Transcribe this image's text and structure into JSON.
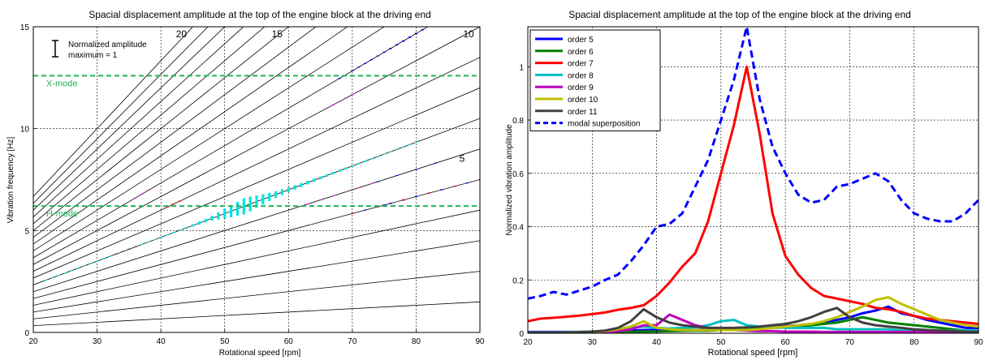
{
  "chart_data": [
    {
      "type": "line",
      "title": "Spacial displacement amplitude at the top of the engine block at the driving end",
      "xlabel": "Rotational speed [rpm]",
      "ylabel": "Vibration frequency [Hz]",
      "xlim": [
        20,
        90
      ],
      "ylim": [
        0,
        15
      ],
      "grid": true,
      "xticks": [
        20,
        30,
        40,
        50,
        60,
        70,
        80,
        90
      ],
      "yticks": [
        0,
        5,
        10,
        15
      ],
      "orders": [
        1,
        2,
        3,
        4,
        5,
        6,
        7,
        8,
        9,
        10,
        11,
        12,
        13,
        14,
        15,
        16,
        17,
        18,
        19,
        20
      ],
      "order_labels": [
        {
          "text": "20",
          "order": 20
        },
        {
          "text": "15",
          "order": 15
        },
        {
          "text": "10",
          "order": 10
        },
        {
          "text": "5",
          "order": 5
        }
      ],
      "mode_lines": [
        {
          "label": "X-mode",
          "y": 12.6,
          "color": "#22b55a"
        },
        {
          "label": "H-mode",
          "y": 6.2,
          "color": "#22b55a"
        }
      ],
      "legend_note": [
        "Normalized amplitude",
        "maximum = 1"
      ],
      "amplitude_markers": [
        {
          "order": 7,
          "color": "#00e5e5",
          "points": [
            [
              22,
              0.0
            ],
            [
              23,
              0.0
            ],
            [
              24,
              0.01
            ],
            [
              25,
              0.01
            ],
            [
              26,
              0.01
            ],
            [
              27,
              0.01
            ],
            [
              28,
              0.01
            ],
            [
              29,
              0.01
            ],
            [
              30,
              0.02
            ],
            [
              31,
              0.02
            ],
            [
              32,
              0.02
            ],
            [
              33,
              0.02
            ],
            [
              34,
              0.02
            ],
            [
              35,
              0.03
            ],
            [
              36,
              0.04
            ],
            [
              37,
              0.05
            ],
            [
              38,
              0.06
            ],
            [
              39,
              0.06
            ],
            [
              40,
              0.07
            ],
            [
              41,
              0.07
            ],
            [
              42,
              0.08
            ],
            [
              43,
              0.09
            ],
            [
              44,
              0.12
            ],
            [
              45,
              0.15
            ],
            [
              46,
              0.2
            ],
            [
              47,
              0.22
            ],
            [
              48,
              0.3
            ],
            [
              49,
              0.45
            ],
            [
              50,
              0.62
            ],
            [
              51,
              0.75
            ],
            [
              52,
              0.85
            ],
            [
              53,
              1.0
            ],
            [
              54,
              0.9
            ],
            [
              55,
              0.75
            ],
            [
              56,
              0.62
            ],
            [
              57,
              0.5
            ],
            [
              58,
              0.42
            ],
            [
              59,
              0.36
            ],
            [
              60,
              0.3
            ],
            [
              61,
              0.27
            ],
            [
              62,
              0.25
            ],
            [
              63,
              0.22
            ],
            [
              64,
              0.2
            ],
            [
              65,
              0.18
            ],
            [
              66,
              0.16
            ],
            [
              67,
              0.15
            ],
            [
              68,
              0.13
            ],
            [
              69,
              0.12
            ],
            [
              70,
              0.11
            ],
            [
              71,
              0.1
            ],
            [
              72,
              0.09
            ],
            [
              73,
              0.08
            ],
            [
              74,
              0.07
            ],
            [
              75,
              0.06
            ],
            [
              76,
              0.05
            ],
            [
              77,
              0.04
            ],
            [
              78,
              0.04
            ],
            [
              79,
              0.03
            ],
            [
              80,
              0.02
            ]
          ]
        },
        {
          "order": 11,
          "color": "#0000ff",
          "points": [
            [
              68,
              0.03
            ],
            [
              70,
              0.04
            ],
            [
              71,
              0.04
            ],
            [
              72,
              0.05
            ],
            [
              73,
              0.06
            ],
            [
              74,
              0.06
            ],
            [
              75,
              0.07
            ],
            [
              76,
              0.08
            ],
            [
              77,
              0.08
            ],
            [
              78,
              0.09
            ],
            [
              79,
              0.09
            ],
            [
              80,
              0.09
            ],
            [
              81,
              0.08
            ],
            [
              82,
              0.07
            ]
          ]
        },
        {
          "order": 10,
          "color": "#e020e0",
          "points": [
            [
              66,
              0.06
            ],
            [
              67,
              0.07
            ],
            [
              68,
              0.06
            ],
            [
              69,
              0.05
            ],
            [
              70,
              0.04
            ],
            [
              71,
              0.03
            ]
          ]
        },
        {
          "order": 5,
          "color": "#0000ff",
          "points": [
            [
              70,
              0.03
            ],
            [
              72,
              0.04
            ],
            [
              74,
              0.06
            ],
            [
              75,
              0.07
            ],
            [
              76,
              0.08
            ],
            [
              78,
              0.09
            ],
            [
              80,
              0.09
            ],
            [
              82,
              0.08
            ],
            [
              84,
              0.07
            ],
            [
              86,
              0.05
            ],
            [
              88,
              0.03
            ],
            [
              90,
              0.02
            ]
          ]
        },
        {
          "order": 5,
          "color": "#ff0000",
          "points": [
            [
              70,
              0.02
            ],
            [
              74,
              0.03
            ],
            [
              78,
              0.03
            ],
            [
              82,
              0.03
            ],
            [
              86,
              0.04
            ],
            [
              90,
              0.05
            ]
          ]
        },
        {
          "order": 6,
          "color": "#e020e0",
          "points": [
            [
              63,
              0.03
            ],
            [
              65,
              0.04
            ],
            [
              67,
              0.05
            ],
            [
              69,
              0.05
            ],
            [
              71,
              0.04
            ],
            [
              73,
              0.03
            ]
          ]
        },
        {
          "order": 11,
          "color": "#e020e0",
          "points": [
            [
              36,
              0.03
            ],
            [
              37,
              0.04
            ],
            [
              38,
              0.03
            ]
          ]
        },
        {
          "order": 9,
          "color": "#ff0000",
          "points": [
            [
              41,
              0.02
            ],
            [
              42,
              0.03
            ],
            [
              43,
              0.02
            ]
          ]
        },
        {
          "order": 6,
          "color": "#0000ff",
          "points": [
            [
              74,
              0.02
            ],
            [
              77,
              0.03
            ],
            [
              80,
              0.03
            ],
            [
              83,
              0.02
            ]
          ]
        },
        {
          "order": 7,
          "color": "#404040",
          "points": [
            [
              33,
              0.02
            ],
            [
              34,
              0.02
            ],
            [
              35,
              0.02
            ],
            [
              36,
              0.02
            ]
          ]
        }
      ]
    },
    {
      "type": "line",
      "title": "Spacial displacement amplitude at the top of the engine block at the driving end",
      "xlabel": "Rotational speed   [rpm]",
      "ylabel": "Normalized vibration amplitude",
      "xlim": [
        20,
        90
      ],
      "ylim": [
        0,
        1.15
      ],
      "grid": true,
      "legend_position": "top-left",
      "xticks": [
        20,
        30,
        40,
        50,
        60,
        70,
        80,
        90
      ],
      "yticks": [
        0,
        0.2,
        0.4,
        0.6,
        0.8,
        1
      ],
      "ytick_labels": [
        "0",
        "0.2",
        "0.4",
        "0.6",
        "0.8",
        "1"
      ],
      "x": [
        20,
        22,
        24,
        26,
        28,
        30,
        32,
        34,
        36,
        38,
        40,
        42,
        44,
        46,
        48,
        50,
        52,
        54,
        56,
        58,
        60,
        62,
        64,
        66,
        68,
        70,
        72,
        74,
        76,
        78,
        80,
        82,
        84,
        86,
        88,
        90
      ],
      "series": [
        {
          "name": "order 5",
          "color": "#0000ff",
          "dash": "solid",
          "values": [
            0.005,
            0.005,
            0.005,
            0.005,
            0.005,
            0.005,
            0.006,
            0.008,
            0.01,
            0.012,
            0.012,
            0.012,
            0.012,
            0.012,
            0.015,
            0.015,
            0.015,
            0.018,
            0.02,
            0.025,
            0.027,
            0.03,
            0.035,
            0.04,
            0.05,
            0.06,
            0.075,
            0.085,
            0.1,
            0.075,
            0.065,
            0.05,
            0.04,
            0.03,
            0.02,
            0.02
          ]
        },
        {
          "name": "order 6",
          "color": "#008000",
          "dash": "solid",
          "values": [
            0.002,
            0.002,
            0.002,
            0.002,
            0.002,
            0.003,
            0.003,
            0.004,
            0.005,
            0.006,
            0.007,
            0.008,
            0.009,
            0.01,
            0.01,
            0.012,
            0.014,
            0.016,
            0.018,
            0.02,
            0.022,
            0.025,
            0.03,
            0.035,
            0.04,
            0.05,
            0.06,
            0.05,
            0.04,
            0.035,
            0.03,
            0.025,
            0.02,
            0.015,
            0.01,
            0.01
          ]
        },
        {
          "name": "order 7",
          "color": "#ff0000",
          "dash": "solid",
          "values": [
            0.045,
            0.055,
            0.058,
            0.062,
            0.066,
            0.072,
            0.078,
            0.088,
            0.095,
            0.105,
            0.14,
            0.19,
            0.25,
            0.3,
            0.42,
            0.6,
            0.78,
            1.0,
            0.75,
            0.45,
            0.29,
            0.22,
            0.17,
            0.14,
            0.13,
            0.12,
            0.11,
            0.095,
            0.09,
            0.08,
            0.065,
            0.055,
            0.05,
            0.045,
            0.04,
            0.035
          ]
        },
        {
          "name": "order 8",
          "color": "#00bfbf",
          "dash": "solid",
          "values": [
            0.003,
            0.003,
            0.003,
            0.004,
            0.005,
            0.006,
            0.008,
            0.012,
            0.02,
            0.025,
            0.02,
            0.018,
            0.02,
            0.022,
            0.03,
            0.045,
            0.05,
            0.03,
            0.025,
            0.025,
            0.02,
            0.02,
            0.02,
            0.02,
            0.015,
            0.015,
            0.015,
            0.015,
            0.015,
            0.01,
            0.01,
            0.01,
            0.01,
            0.01,
            0.01,
            0.01
          ]
        },
        {
          "name": "order 9",
          "color": "#bf00bf",
          "dash": "solid",
          "values": [
            0.002,
            0.002,
            0.002,
            0.002,
            0.002,
            0.003,
            0.004,
            0.008,
            0.015,
            0.03,
            0.03,
            0.07,
            0.05,
            0.03,
            0.02,
            0.015,
            0.012,
            0.01,
            0.008,
            0.008,
            0.006,
            0.006,
            0.006,
            0.005,
            0.005,
            0.005,
            0.005,
            0.005,
            0.005,
            0.005,
            0.005,
            0.005,
            0.005,
            0.005,
            0.005,
            0.005
          ]
        },
        {
          "name": "order 10",
          "color": "#bfbf00",
          "dash": "solid",
          "values": [
            0.002,
            0.002,
            0.002,
            0.003,
            0.004,
            0.005,
            0.008,
            0.015,
            0.025,
            0.045,
            0.02,
            0.015,
            0.012,
            0.012,
            0.012,
            0.012,
            0.012,
            0.012,
            0.015,
            0.02,
            0.025,
            0.03,
            0.035,
            0.045,
            0.06,
            0.08,
            0.1,
            0.125,
            0.135,
            0.11,
            0.09,
            0.07,
            0.05,
            0.04,
            0.03,
            0.025
          ]
        },
        {
          "name": "order 11",
          "color": "#404040",
          "dash": "solid",
          "values": [
            0.002,
            0.002,
            0.002,
            0.003,
            0.004,
            0.006,
            0.01,
            0.02,
            0.045,
            0.09,
            0.06,
            0.04,
            0.03,
            0.025,
            0.02,
            0.02,
            0.02,
            0.022,
            0.025,
            0.03,
            0.035,
            0.045,
            0.06,
            0.08,
            0.095,
            0.06,
            0.04,
            0.03,
            0.025,
            0.02,
            0.015,
            0.012,
            0.01,
            0.008,
            0.006,
            0.005
          ]
        },
        {
          "name": "modal superposition",
          "color": "#0000ff",
          "dash": "dashed",
          "values": [
            0.13,
            0.14,
            0.155,
            0.145,
            0.16,
            0.175,
            0.2,
            0.22,
            0.27,
            0.33,
            0.4,
            0.41,
            0.45,
            0.55,
            0.65,
            0.8,
            0.95,
            1.15,
            0.88,
            0.7,
            0.6,
            0.52,
            0.49,
            0.5,
            0.55,
            0.56,
            0.58,
            0.6,
            0.57,
            0.5,
            0.45,
            0.43,
            0.42,
            0.42,
            0.45,
            0.5
          ]
        }
      ]
    }
  ]
}
